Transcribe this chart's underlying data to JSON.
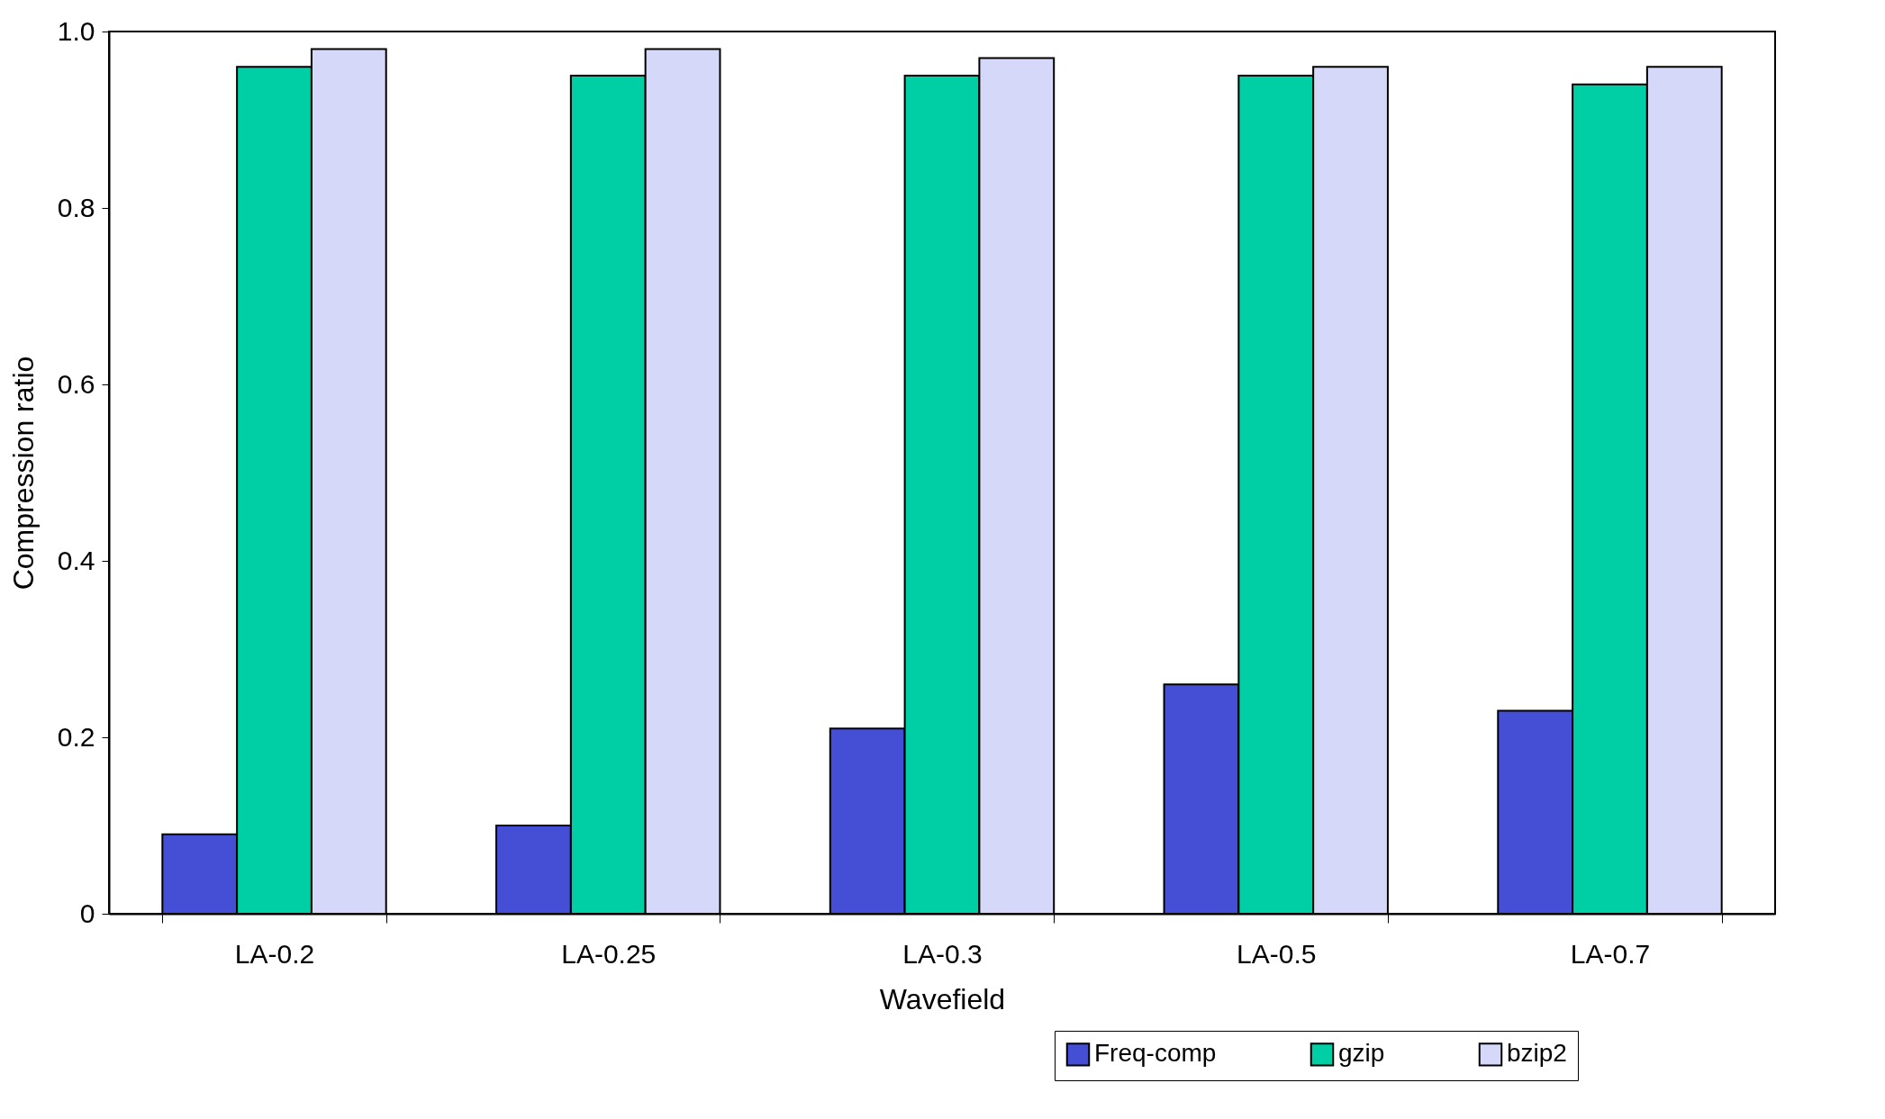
{
  "chart_data": {
    "type": "bar",
    "xlabel": "Wavefield",
    "ylabel": "Compression ratio",
    "categories": [
      "LA-0.2",
      "LA-0.25",
      "LA-0.3",
      "LA-0.5",
      "LA-0.7"
    ],
    "series": [
      {
        "name": "Freq-comp",
        "color": "#444fd6",
        "values": [
          0.09,
          0.1,
          0.21,
          0.26,
          0.23
        ]
      },
      {
        "name": "gzip",
        "color": "#00cfa5",
        "values": [
          0.96,
          0.95,
          0.95,
          0.95,
          0.94
        ]
      },
      {
        "name": "bzip2",
        "color": "#d6d8fa",
        "values": [
          0.98,
          0.98,
          0.97,
          0.96,
          0.96
        ]
      }
    ],
    "ylim": [
      0,
      1
    ],
    "yticks": [
      0,
      {
        "value": 0.2,
        "label": "0.2"
      },
      {
        "value": 0.4,
        "label": "0.4"
      },
      {
        "value": 0.6,
        "label": "0.6"
      },
      {
        "value": 0.8,
        "label": "0.8"
      },
      {
        "value": 1,
        "label": "1.0"
      }
    ],
    "grid": false,
    "legend": "bottom right"
  }
}
